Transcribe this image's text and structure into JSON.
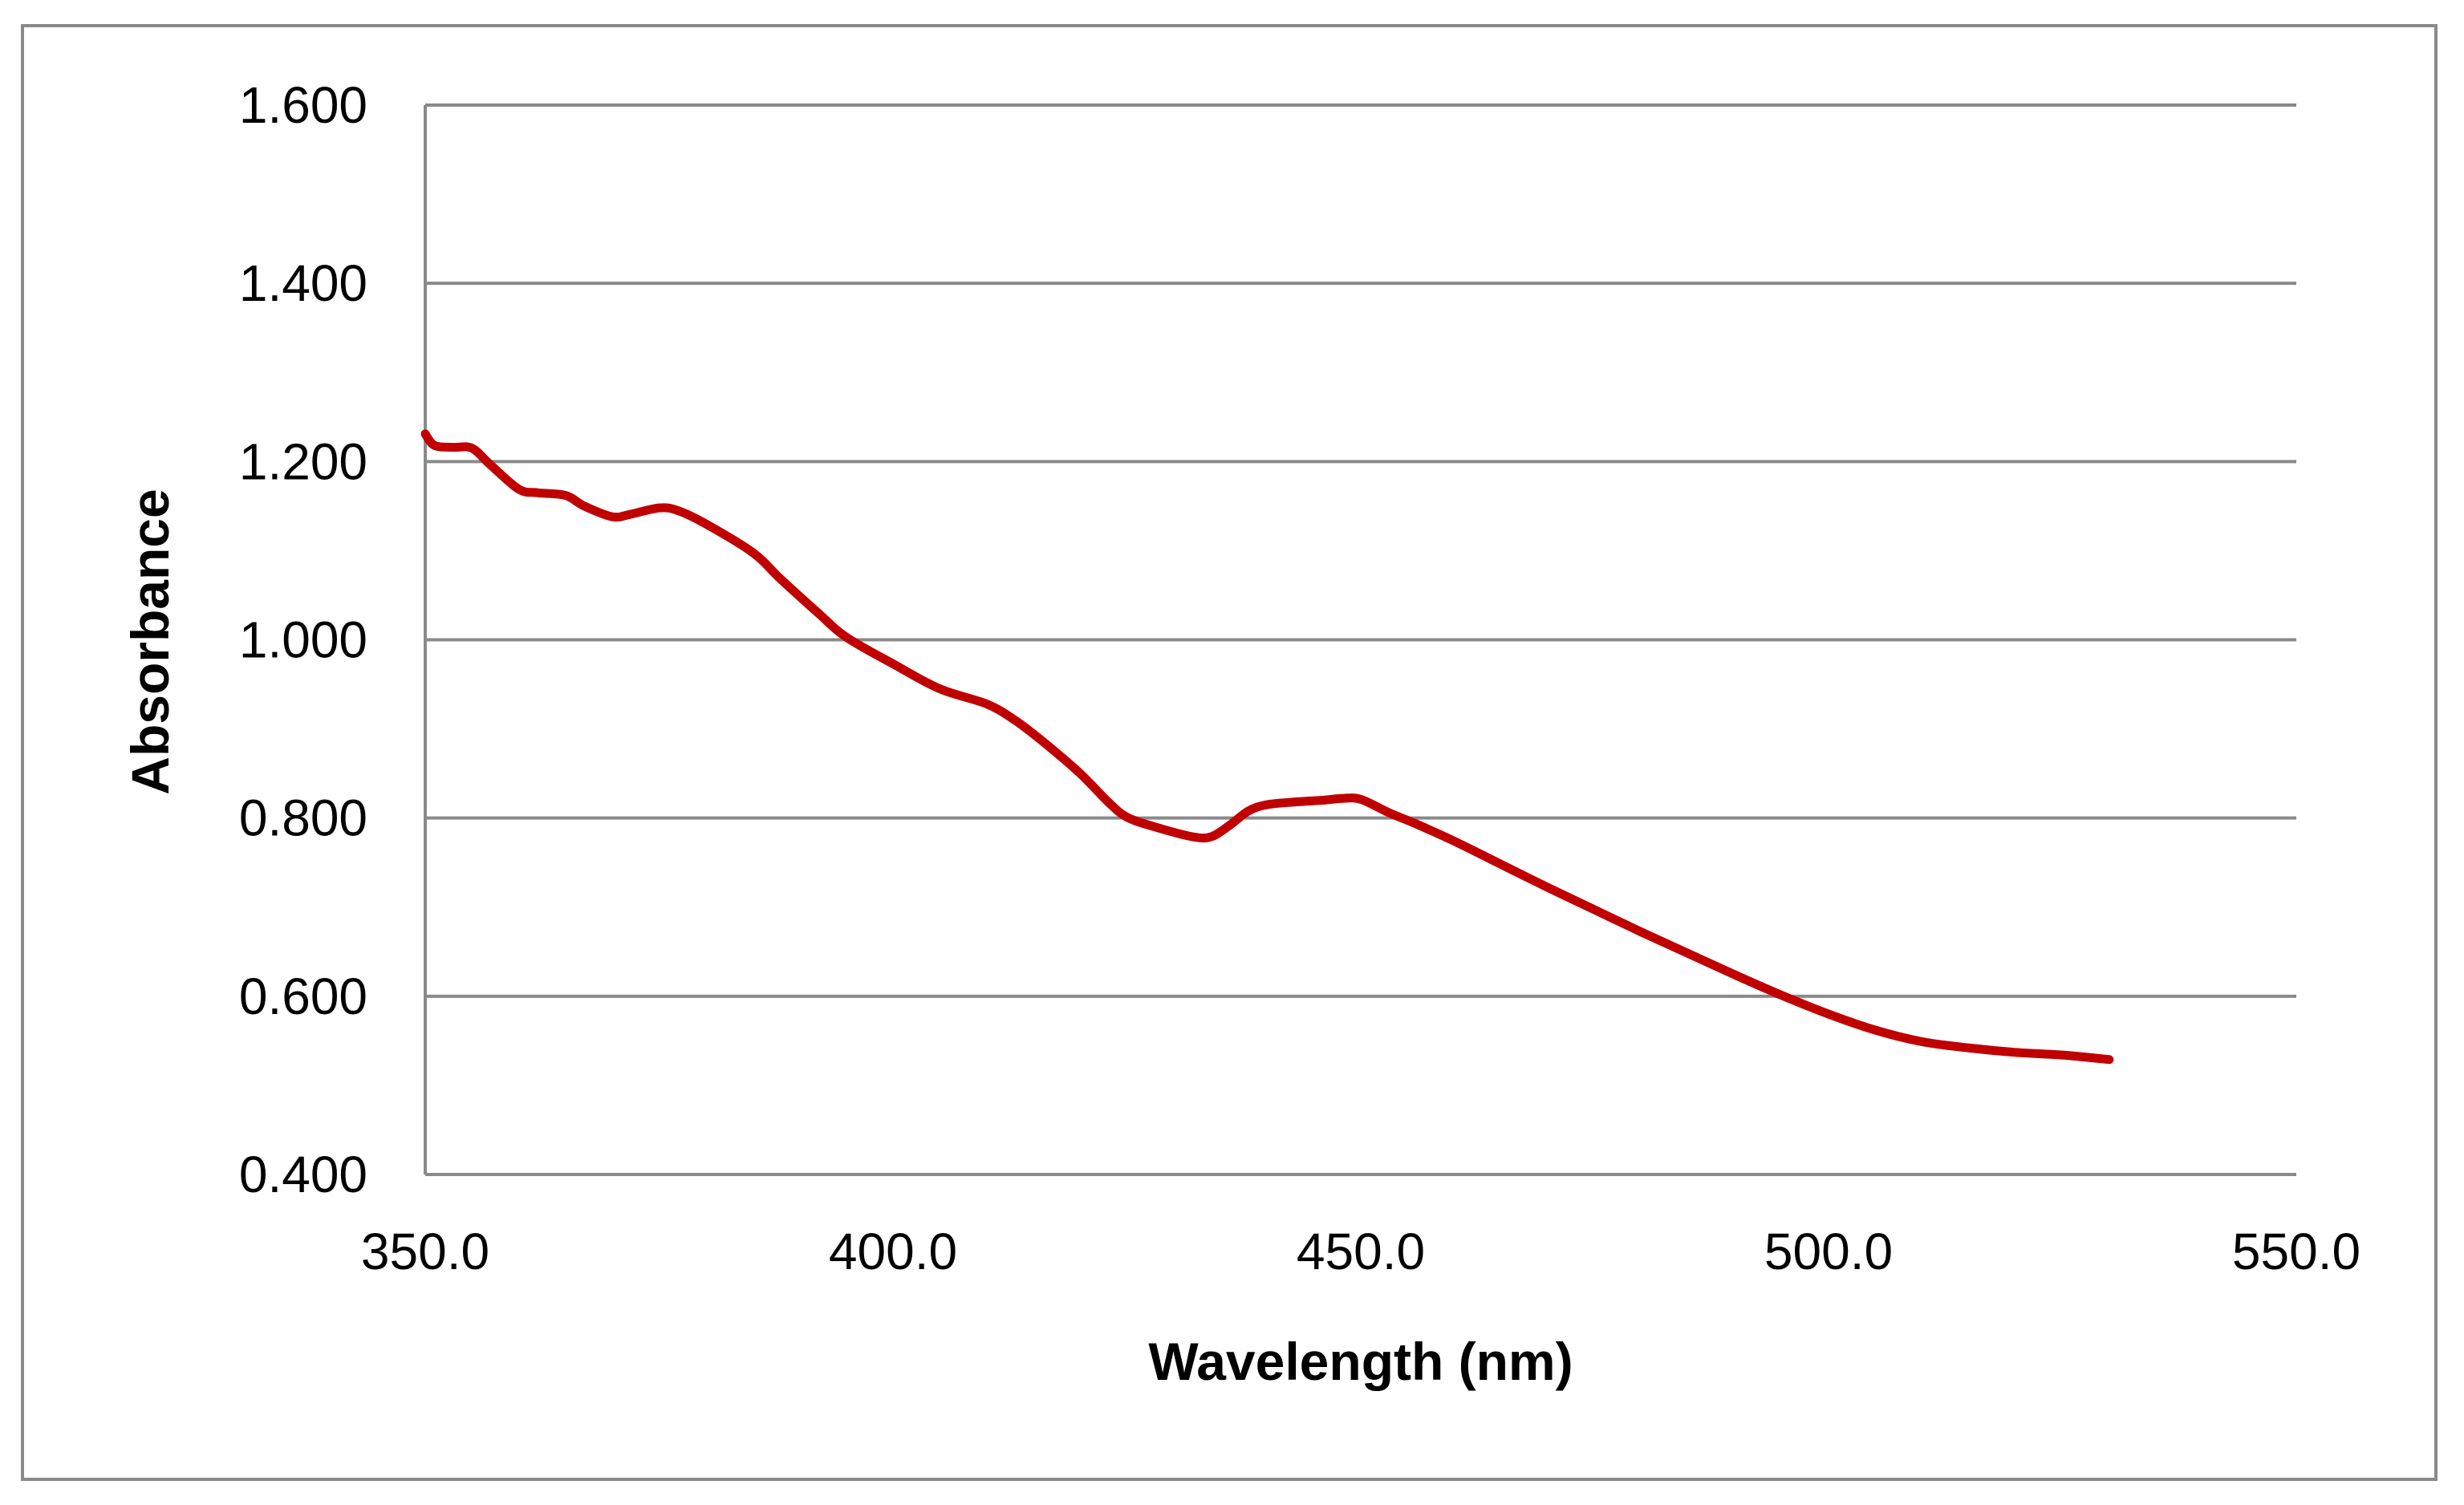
{
  "chart_data": {
    "type": "line",
    "title": "",
    "xlabel": "Wavelength (nm)",
    "ylabel": "Absorbance",
    "xlim": [
      350.0,
      550.0
    ],
    "ylim": [
      0.4,
      1.6
    ],
    "x_ticks": [
      "350.0",
      "400.0",
      "450.0",
      "500.0",
      "550.0"
    ],
    "y_ticks": [
      "0.400",
      "0.600",
      "0.800",
      "1.000",
      "1.200",
      "1.400",
      "1.600"
    ],
    "grid": "horizontal",
    "legend": "none",
    "series": [
      {
        "name": "Absorbance",
        "color": "#c00000",
        "x": [
          350,
          351,
          353,
          355,
          357,
          360,
          362,
          365,
          367,
          370,
          372,
          375,
          377,
          380,
          385,
          388,
          392,
          395,
          400,
          405,
          410,
          413,
          416,
          420,
          423,
          425,
          428,
          432,
          434,
          436,
          438,
          440,
          443,
          446,
          448,
          450,
          453,
          456,
          460,
          465,
          470,
          475,
          480,
          485,
          490,
          495,
          500,
          505,
          510,
          515,
          520,
          525,
          530
        ],
        "values": [
          1.231,
          1.218,
          1.216,
          1.215,
          1.196,
          1.169,
          1.165,
          1.162,
          1.15,
          1.138,
          1.141,
          1.148,
          1.145,
          1.13,
          1.098,
          1.068,
          1.03,
          1.003,
          0.973,
          0.945,
          0.928,
          0.91,
          0.886,
          0.85,
          0.818,
          0.801,
          0.79,
          0.779,
          0.779,
          0.792,
          0.808,
          0.815,
          0.818,
          0.82,
          0.822,
          0.821,
          0.806,
          0.793,
          0.774,
          0.748,
          0.722,
          0.697,
          0.672,
          0.648,
          0.624,
          0.601,
          0.58,
          0.562,
          0.549,
          0.542,
          0.537,
          0.534,
          0.529
        ]
      }
    ]
  }
}
